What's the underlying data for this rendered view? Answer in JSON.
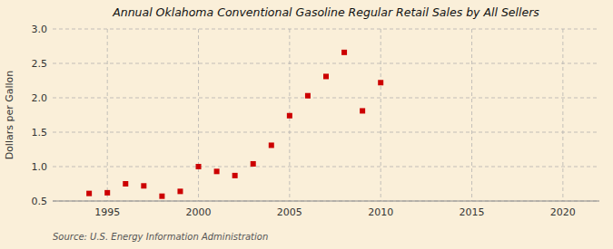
{
  "chart_data": {
    "type": "scatter",
    "title": "Annual Oklahoma Conventional Gasoline Regular Retail Sales by All Sellers",
    "y_label": "Dollars per Gallon",
    "annotations": [
      "Source: U.S. Energy Information Administration"
    ],
    "x": [
      1994,
      1995,
      1996,
      1997,
      1998,
      1999,
      2000,
      2001,
      2002,
      2003,
      2004,
      2005,
      2006,
      2007,
      2008,
      2009,
      2010
    ],
    "values": [
      0.61,
      0.62,
      0.75,
      0.72,
      0.57,
      0.64,
      1.0,
      0.93,
      0.87,
      1.04,
      1.31,
      1.74,
      2.03,
      2.31,
      2.66,
      1.81,
      2.22
    ],
    "color": "#cc0000",
    "marker": "square",
    "xlim": [
      1992,
      2022
    ],
    "ylim": [
      0.5,
      3.0
    ],
    "xticks": [
      1995,
      2000,
      2005,
      2010,
      2015,
      2020
    ],
    "yticks": [
      0.5,
      {
        "value": 1.0,
        "label": "1.0"
      },
      1.5,
      {
        "value": 2.0,
        "label": "2.0"
      },
      2.5,
      {
        "value": 3.0,
        "label": "3.0"
      }
    ],
    "grid": true
  }
}
